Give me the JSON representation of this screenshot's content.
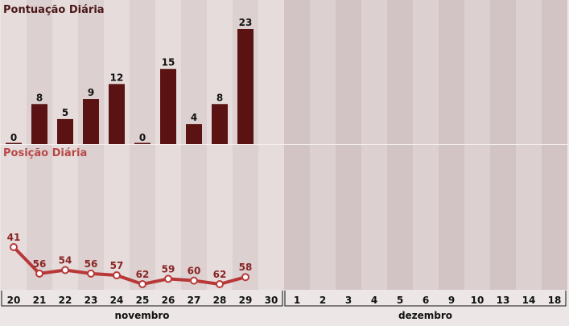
{
  "chart_data": [
    {
      "type": "bar",
      "title": "Pontuação Diária",
      "categories": [
        "20",
        "21",
        "22",
        "23",
        "24",
        "25",
        "26",
        "27",
        "28",
        "29",
        "30",
        "1",
        "2",
        "3",
        "4",
        "5",
        "6",
        "9",
        "10",
        "13",
        "14",
        "18"
      ],
      "values": [
        0,
        8,
        5,
        9,
        12,
        0,
        15,
        4,
        8,
        23,
        null,
        null,
        null,
        null,
        null,
        null,
        null,
        null,
        null,
        null,
        null,
        null
      ],
      "ylim": [
        0,
        23
      ],
      "grid": false,
      "colors": {
        "bar": "#5a1212",
        "title": "#4a1818"
      }
    },
    {
      "type": "line",
      "title": "Posição Diária",
      "categories": [
        "20",
        "21",
        "22",
        "23",
        "24",
        "25",
        "26",
        "27",
        "28",
        "29",
        "30",
        "1",
        "2",
        "3",
        "4",
        "5",
        "6",
        "9",
        "10",
        "13",
        "14",
        "18"
      ],
      "values": [
        41,
        56,
        54,
        56,
        57,
        62,
        59,
        60,
        62,
        58,
        null,
        null,
        null,
        null,
        null,
        null,
        null,
        null,
        null,
        null,
        null,
        null
      ],
      "y_inverted": true,
      "colors": {
        "line": "#b83838",
        "label": "#8a2424",
        "title": "#b84848"
      }
    }
  ],
  "axis": {
    "months": [
      {
        "label": "novembro",
        "from": 0,
        "to": 10
      },
      {
        "label": "dezembro",
        "from": 11,
        "to": 21
      }
    ]
  },
  "colors": {
    "background": "#ece6e6",
    "column_light": "#e6dcdc",
    "column_dark": "#dcd0d0",
    "column_future": "#d2c4c4",
    "axis_text": "#111111"
  }
}
